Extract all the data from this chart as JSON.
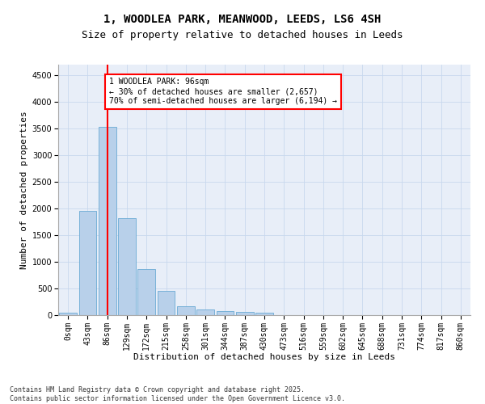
{
  "title_line1": "1, WOODLEA PARK, MEANWOOD, LEEDS, LS6 4SH",
  "title_line2": "Size of property relative to detached houses in Leeds",
  "xlabel": "Distribution of detached houses by size in Leeds",
  "ylabel": "Number of detached properties",
  "bar_labels": [
    "0sqm",
    "43sqm",
    "86sqm",
    "129sqm",
    "172sqm",
    "215sqm",
    "258sqm",
    "301sqm",
    "344sqm",
    "387sqm",
    "430sqm",
    "473sqm",
    "516sqm",
    "559sqm",
    "602sqm",
    "645sqm",
    "688sqm",
    "731sqm",
    "774sqm",
    "817sqm",
    "860sqm"
  ],
  "bar_values": [
    50,
    1950,
    3530,
    1820,
    860,
    450,
    165,
    100,
    70,
    55,
    50,
    0,
    0,
    0,
    0,
    0,
    0,
    0,
    0,
    0,
    0
  ],
  "bar_color": "#b8d0ea",
  "bar_edge_color": "#6aaad4",
  "vline_color": "red",
  "annotation_text": "1 WOODLEA PARK: 96sqm\n← 30% of detached houses are smaller (2,657)\n70% of semi-detached houses are larger (6,194) →",
  "annotation_box_color": "white",
  "annotation_box_edgecolor": "red",
  "ylim": [
    0,
    4700
  ],
  "yticks": [
    0,
    500,
    1000,
    1500,
    2000,
    2500,
    3000,
    3500,
    4000,
    4500
  ],
  "grid_color": "#c8d8ee",
  "background_color": "#e8eef8",
  "footer_text": "Contains HM Land Registry data © Crown copyright and database right 2025.\nContains public sector information licensed under the Open Government Licence v3.0.",
  "title_fontsize": 10,
  "subtitle_fontsize": 9,
  "axis_label_fontsize": 8,
  "tick_fontsize": 7,
  "annotation_fontsize": 7,
  "footer_fontsize": 6
}
